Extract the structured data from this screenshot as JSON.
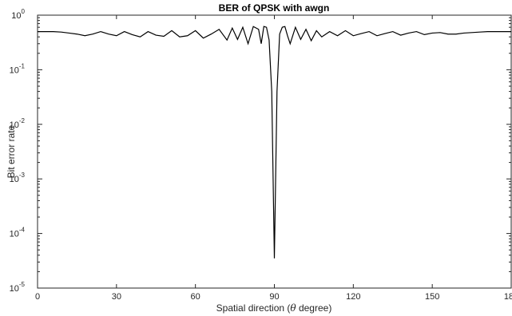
{
  "chart_data": {
    "type": "line",
    "title": "BER of QPSK with awgn",
    "xlabel_prefix": "Spatial direction (",
    "xlabel_theta": "θ",
    "xlabel_suffix": " degree)",
    "ylabel": "Bit error rate",
    "xlim": [
      0,
      180
    ],
    "ylim": [
      1e-05,
      1
    ],
    "yscale": "log",
    "grid": false,
    "x_ticks": [
      {
        "value": 0,
        "label": "0"
      },
      {
        "value": 30,
        "label": "30"
      },
      {
        "value": 60,
        "label": "60"
      },
      {
        "value": 90,
        "label": "90"
      },
      {
        "value": 120,
        "label": "120"
      },
      {
        "value": 150,
        "label": "150"
      },
      {
        "value": 180,
        "label": "180"
      }
    ],
    "y_ticks": [
      {
        "value": 1e-05,
        "base": "10",
        "exp": "-5"
      },
      {
        "value": 0.0001,
        "base": "10",
        "exp": "-4"
      },
      {
        "value": 0.001,
        "base": "10",
        "exp": "-3"
      },
      {
        "value": 0.01,
        "base": "10",
        "exp": "-2"
      },
      {
        "value": 0.1,
        "base": "10",
        "exp": "-1"
      },
      {
        "value": 1,
        "base": "10",
        "exp": "0"
      }
    ],
    "series": [
      {
        "color": "#000000",
        "x": [
          0,
          3,
          6,
          9,
          12,
          15,
          18,
          21,
          24,
          27,
          30,
          33,
          36,
          39,
          42,
          45,
          48,
          51,
          54,
          57,
          60,
          63,
          66,
          69,
          72,
          74,
          76,
          78,
          80,
          82,
          84,
          85,
          86,
          87,
          88,
          89,
          90,
          91,
          92,
          93,
          94,
          95,
          96,
          98,
          100,
          102,
          104,
          106,
          108,
          111,
          114,
          117,
          120,
          123,
          126,
          129,
          132,
          135,
          138,
          141,
          144,
          147,
          150,
          153,
          156,
          159,
          162,
          165,
          168,
          171,
          174,
          177,
          180
        ],
        "y": [
          0.5,
          0.5,
          0.5,
          0.49,
          0.47,
          0.45,
          0.42,
          0.45,
          0.5,
          0.45,
          0.42,
          0.5,
          0.44,
          0.4,
          0.5,
          0.43,
          0.41,
          0.52,
          0.4,
          0.42,
          0.52,
          0.38,
          0.45,
          0.55,
          0.35,
          0.58,
          0.36,
          0.6,
          0.3,
          0.62,
          0.55,
          0.3,
          0.62,
          0.6,
          0.35,
          0.04,
          3.5e-05,
          0.04,
          0.45,
          0.6,
          0.62,
          0.42,
          0.3,
          0.6,
          0.36,
          0.55,
          0.34,
          0.52,
          0.4,
          0.5,
          0.42,
          0.52,
          0.42,
          0.46,
          0.5,
          0.42,
          0.46,
          0.5,
          0.43,
          0.47,
          0.5,
          0.44,
          0.47,
          0.48,
          0.45,
          0.45,
          0.47,
          0.48,
          0.49,
          0.5,
          0.5,
          0.5,
          0.5
        ]
      }
    ]
  }
}
